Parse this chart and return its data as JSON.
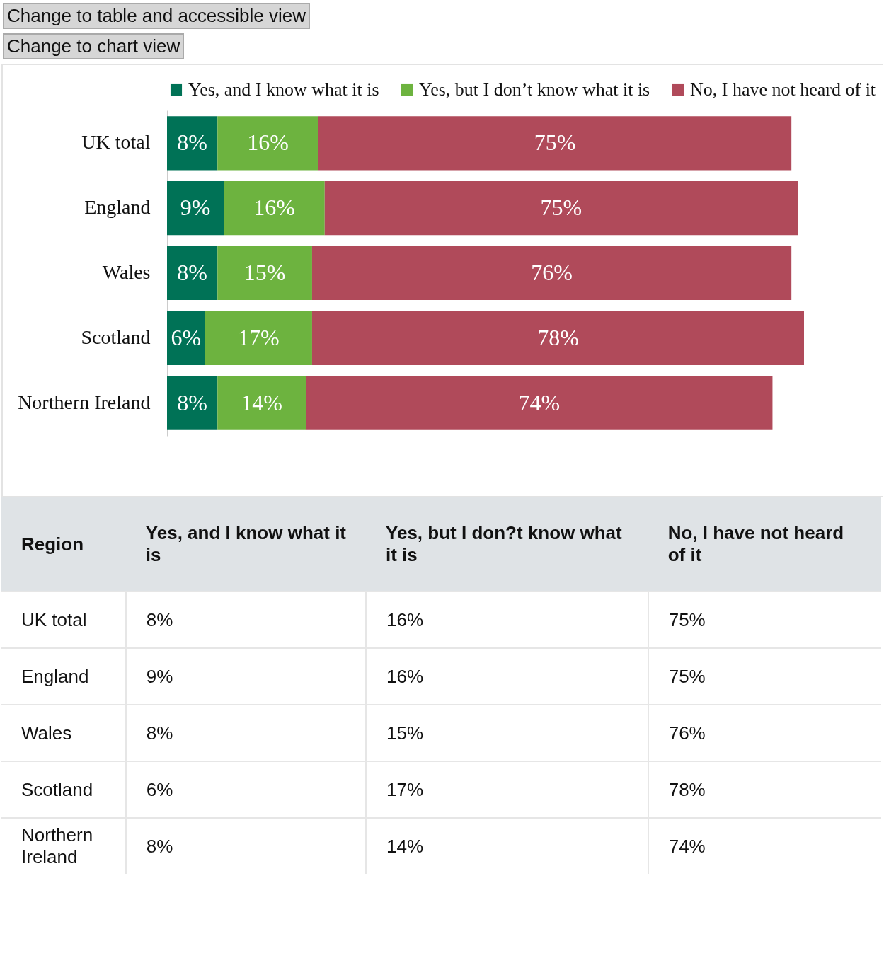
{
  "chart_data": {
    "type": "bar",
    "orientation": "horizontal",
    "stacked": true,
    "legend": "top",
    "grid": false,
    "tick_labels": "y",
    "categories": [
      "UK total",
      "England",
      "Wales",
      "Scotland",
      "Northern Ireland"
    ],
    "series": [
      {
        "name": "Yes, and I know what it is",
        "color": "#007256",
        "values": [
          8,
          9,
          8,
          6,
          8
        ],
        "value_labels": [
          "8%",
          "9%",
          "8%",
          "6%",
          "8%"
        ]
      },
      {
        "name": "Yes, but I don’t know what it is",
        "color": "#6db33f",
        "values": [
          16,
          16,
          15,
          17,
          14
        ],
        "value_labels": [
          "16%",
          "16%",
          "15%",
          "17%",
          "14%"
        ]
      },
      {
        "name": "No, I have not heard of it",
        "color": "#b04a5a",
        "values": [
          75,
          75,
          76,
          78,
          74
        ],
        "value_labels": [
          "75%",
          "75%",
          "76%",
          "78%",
          "74%"
        ]
      }
    ],
    "annotations": [
      "Change to table and accessible view",
      "Change to chart view",
      "Region",
      "Yes, and I know what it is",
      "Yes, but I don?t know what it is",
      "No, I have not heard of it"
    ]
  }
}
